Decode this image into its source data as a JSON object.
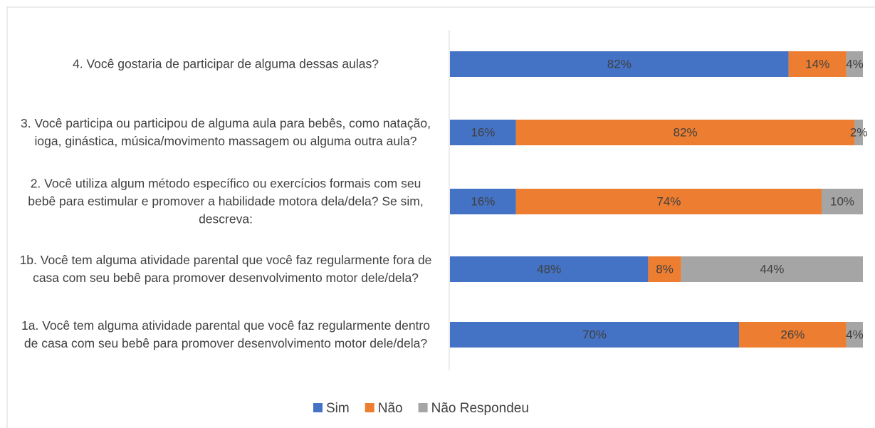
{
  "chart_data": {
    "type": "stacked-bar-horizontal",
    "categories": [
      "1a. Você tem alguma atividade parental que você faz regularmente dentro de casa com seu bebê para promover desenvolvimento motor dele/dela?",
      "1b. Você tem alguma atividade parental que você faz regularmente fora de casa com seu bebê para promover desenvolvimento motor dele/dela?",
      "2. Você utiliza algum método específico ou exercícios formais com seu bebê para estimular e promover a habilidade motora dela/dela? Se sim, descreva:",
      "3. Você participa ou participou de alguma aula para bebês, como natação, ioga, ginástica, música/movimento massagem ou alguma outra aula?",
      "4. Você gostaria de participar de alguma dessas aulas?"
    ],
    "series": [
      {
        "name": "Sim",
        "color": "#4472c4",
        "values": [
          70,
          48,
          16,
          16,
          82
        ],
        "value_labels": [
          "70%",
          "48%",
          "16%",
          "16%",
          "82%"
        ]
      },
      {
        "name": "Não",
        "color": "#ed7d31",
        "values": [
          26,
          8,
          74,
          82,
          14
        ],
        "value_labels": [
          "26%",
          "8%",
          "74%",
          "82%",
          "14%"
        ]
      },
      {
        "name": "Não Respondeu",
        "color": "#a5a5a5",
        "values": [
          4,
          44,
          10,
          2,
          4
        ],
        "value_labels": [
          "4%",
          "44%",
          "10%",
          "2%",
          "4%"
        ]
      }
    ],
    "xlim": [
      0,
      100
    ],
    "legend": "bottom"
  }
}
